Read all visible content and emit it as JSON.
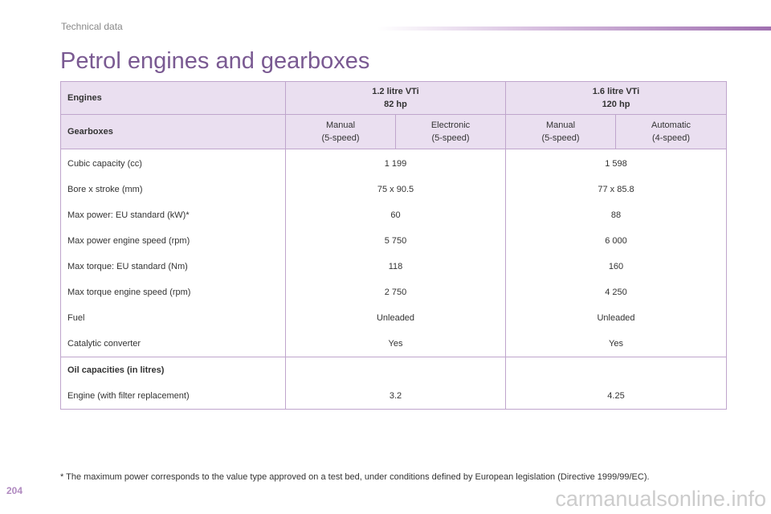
{
  "header": {
    "section": "Technical data",
    "title": "Petrol engines and gearboxes"
  },
  "table": {
    "engines_label": "Engines",
    "engines": [
      {
        "name": "1.2 litre VTi",
        "power": "82 hp"
      },
      {
        "name": "1.6 litre VTi",
        "power": "120 hp"
      }
    ],
    "gearboxes_label": "Gearboxes",
    "gearboxes": [
      [
        "Manual",
        "(5-speed)"
      ],
      [
        "Electronic",
        "(5-speed)"
      ],
      [
        "Manual",
        "(5-speed)"
      ],
      [
        "Automatic",
        "(4-speed)"
      ]
    ],
    "rows": [
      [
        "Cubic capacity (cc)",
        "1 199",
        "1 598"
      ],
      [
        "Bore x stroke (mm)",
        "75 x 90.5",
        "77 x 85.8"
      ],
      [
        "Max power: EU standard (kW)*",
        "60",
        "88"
      ],
      [
        "Max power engine speed (rpm)",
        "5 750",
        "6 000"
      ],
      [
        "Max torque: EU standard (Nm)",
        "118",
        "160"
      ],
      [
        "Max torque engine speed (rpm)",
        "2 750",
        "4 250"
      ],
      [
        "Fuel",
        "Unleaded",
        "Unleaded"
      ],
      [
        "Catalytic converter",
        "Yes",
        "Yes"
      ]
    ],
    "oil_heading": "Oil capacities (in litres)",
    "oil_row": [
      "Engine (with filter replacement)",
      "3.2",
      "4.25"
    ]
  },
  "footnote": "* The maximum power corresponds to the value type approved on a test bed, under conditions defined by European legislation (Directive 1999/99/EC).",
  "page_number": "204",
  "watermark": "carmanualsonline.info"
}
